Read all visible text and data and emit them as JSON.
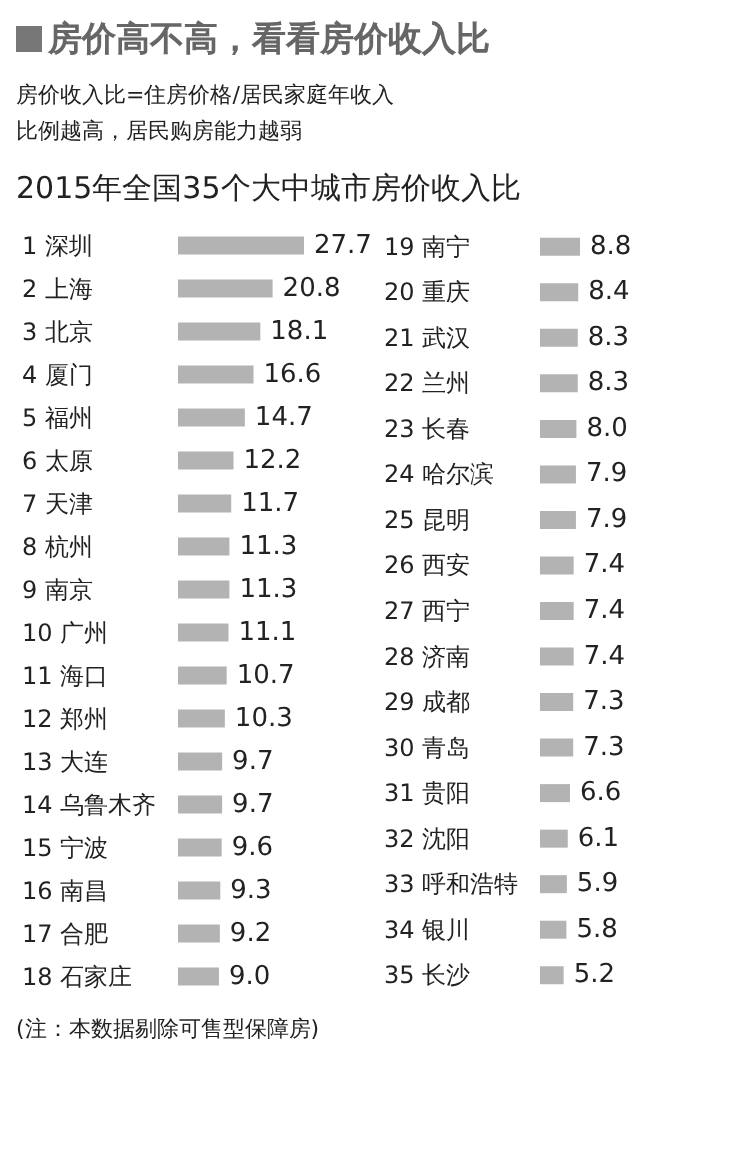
{
  "chart_data": [
    {
      "type": "bar",
      "orientation": "horizontal",
      "title": "房价高不高，看看房价收入比",
      "subtitle": "房价收入比=住房价格/居民家庭年收入",
      "annotations": [
        "比例越高，居民购房能力越弱",
        "2015年全国35个大中城市房价收入比"
      ],
      "tick_labels": false,
      "color": "#b3b3b3",
      "categories": [
        "1 深圳",
        "2 上海",
        "3 北京",
        "4 厦门",
        "5 福州",
        "6 太原",
        "7 天津",
        "8 杭州",
        "9 南京",
        "10 广州",
        "11 海口",
        "12 郑州",
        "13 大连",
        "14 乌鲁木齐",
        "15 宁波",
        "16 南昌",
        "17 合肥",
        "18 石家庄"
      ],
      "values": [
        27.7,
        20.8,
        18.1,
        16.6,
        14.7,
        12.2,
        11.7,
        11.3,
        11.3,
        11.1,
        10.7,
        10.3,
        9.7,
        9.7,
        9.6,
        9.3,
        9.2,
        9.0
      ],
      "value_labels": [
        "27.7",
        "20.8",
        "18.1",
        "16.6",
        "14.7",
        "12.2",
        "11.7",
        "11.3",
        "11.3",
        "11.1",
        "10.7",
        "10.3",
        "9.7",
        "9.7",
        "9.6",
        "9.3",
        "9.2",
        "9.0"
      ]
    },
    {
      "type": "bar",
      "orientation": "horizontal",
      "annotations": [
        "(注：本数据剔除可售型保障房)"
      ],
      "tick_labels": false,
      "color": "#b3b3b3",
      "categories": [
        "19 南宁",
        "20 重庆",
        "21 武汉",
        "22 兰州",
        "23 长春",
        "24 哈尔滨",
        "25 昆明",
        "26 西安",
        "27 西宁",
        "28 济南",
        "29 成都",
        "30 青岛",
        "31 贵阳",
        "32 沈阳",
        "33 呼和浩特",
        "34 银川",
        "35 长沙"
      ],
      "values": [
        8.8,
        8.4,
        8.3,
        8.3,
        8.0,
        7.9,
        7.9,
        7.4,
        7.4,
        7.4,
        7.3,
        7.3,
        6.6,
        6.1,
        5.9,
        5.8,
        5.2
      ],
      "value_labels": [
        "8.8",
        "8.4",
        "8.3",
        "8.3",
        "8.0",
        "7.9",
        "7.9",
        "7.4",
        "7.4",
        "7.4",
        "7.3",
        "7.3",
        "6.6",
        "6.1",
        "5.9",
        "5.8",
        "5.2"
      ]
    }
  ]
}
